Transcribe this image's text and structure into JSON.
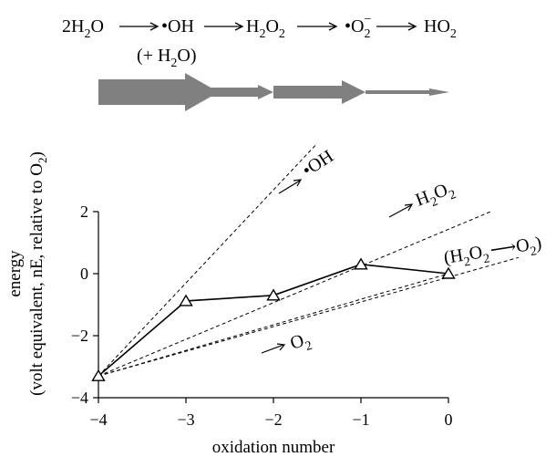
{
  "reaction": {
    "s1": {
      "main": "2H",
      "sub": "2",
      "tail": "O"
    },
    "s2": {
      "main": "•OH",
      "note": "(+ H",
      "note_sub": "2",
      "note_tail": "O)"
    },
    "s3": {
      "a": "H",
      "sub1": "2",
      "b": "O",
      "sub2": "2"
    },
    "s4": {
      "a": "•O",
      "sub": "2",
      "sup": "−"
    },
    "s5": {
      "a": "HO",
      "sub": "2"
    }
  },
  "flow_arrow_color": "#808080",
  "chart_data": {
    "type": "line",
    "xlabel": "oxidation number",
    "ylabel_line1": "energy",
    "ylabel_line2": {
      "pre": "(volt equivalent, nE, relative to O",
      "sub": "2",
      "post": ")"
    },
    "xlim": [
      -4,
      0
    ],
    "ylim": [
      -4,
      2
    ],
    "xticks": [
      -4,
      -3,
      -2,
      -1,
      0
    ],
    "yticks": [
      -4,
      -2,
      0,
      2
    ],
    "xtick_labels": [
      "−4",
      "−3",
      "−2",
      "−1",
      "0"
    ],
    "ytick_labels": [
      "−4",
      "−2",
      "0",
      "2"
    ],
    "grid": false,
    "series": [
      {
        "x": [
          -4,
          -3,
          -2,
          -1,
          0
        ],
        "y": [
          -3.3,
          -0.88,
          -0.7,
          0.3,
          0
        ],
        "marker": "open-triangle",
        "style": "solid"
      }
    ],
    "reference_lines": [
      {
        "from": [
          -4,
          -3.3
        ],
        "to": [
          -1.5,
          4.2
        ],
        "style": "dashed"
      },
      {
        "from": [
          -4,
          -3.3
        ],
        "to": [
          0.5,
          2.02
        ],
        "style": "dashed"
      },
      {
        "from": [
          -4,
          -3.3
        ],
        "to": [
          0.8,
          0.52
        ],
        "style": "dashed"
      },
      {
        "from": [
          -4,
          -3.3
        ],
        "to": [
          0,
          0
        ],
        "style": "dashed"
      }
    ],
    "annotations": {
      "oh": {
        "text": "•OH"
      },
      "h2o2": {
        "a": "H",
        "sub1": "2",
        "b": "O",
        "sub2": "2"
      },
      "h2o2_o2": {
        "open": "(H",
        "s1": "2",
        "o": "O",
        "s2": "2",
        "mid": "O",
        "s3": "2",
        "close": ")"
      },
      "o2": {
        "a": "O",
        "sub": "2"
      }
    }
  }
}
